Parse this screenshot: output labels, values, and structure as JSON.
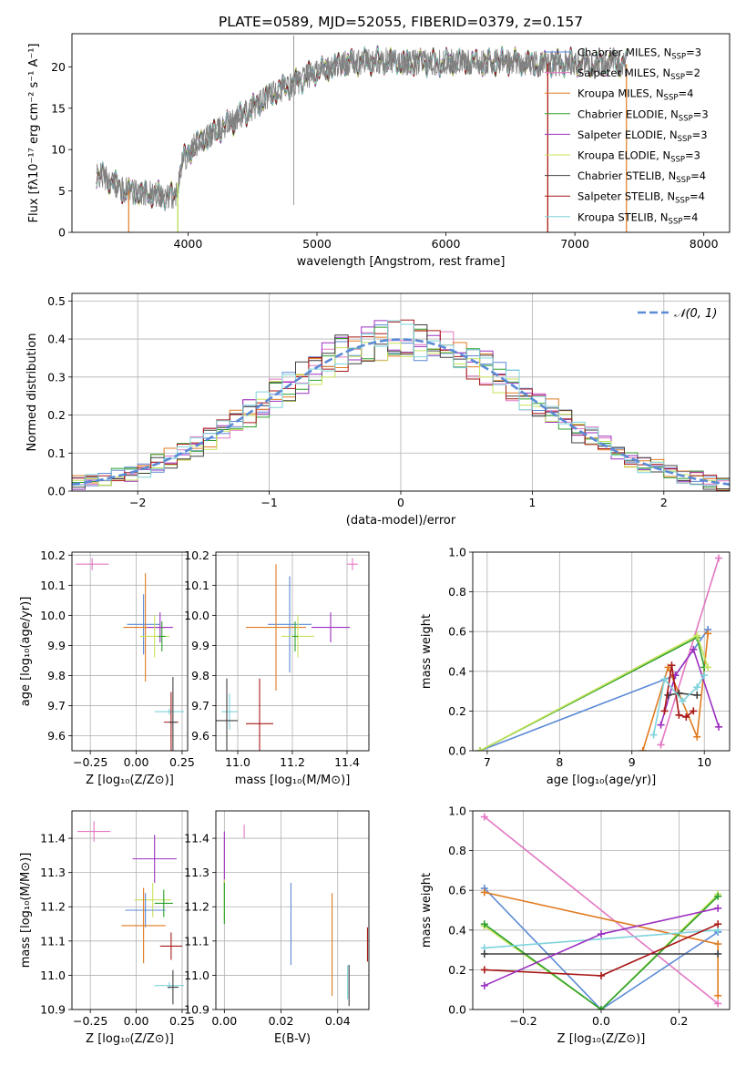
{
  "figure": {
    "title": "PLATE=0589, MJD=52055, FIBERID=0379, z=0.157"
  },
  "models": [
    {
      "key": "cm",
      "color": "#5b8ad6",
      "name": "Chabrier MILES, N",
      "sub": "SSP",
      "suffix": "=3"
    },
    {
      "key": "sm",
      "color": "#e377c2",
      "name": "Salpeter MILES, N",
      "sub": "SSP",
      "suffix": "=2"
    },
    {
      "key": "km",
      "color": "#e07b20",
      "name": "Kroupa MILES, N",
      "sub": "SSP",
      "suffix": "=4"
    },
    {
      "key": "ce",
      "color": "#2ca02c",
      "name": "Chabrier ELODIE, N",
      "sub": "SSP",
      "suffix": "=3"
    },
    {
      "key": "se",
      "color": "#9b30c0",
      "name": "Salpeter ELODIE, N",
      "sub": "SSP",
      "suffix": "=3"
    },
    {
      "key": "ke",
      "color": "#c7e35a",
      "name": "Kroupa ELODIE, N",
      "sub": "SSP",
      "suffix": "=3"
    },
    {
      "key": "cs",
      "color": "#404040",
      "name": "Chabrier STELIB, N",
      "sub": "SSP",
      "suffix": "=4"
    },
    {
      "key": "ss",
      "color": "#a81818",
      "name": "Salpeter STELIB, N",
      "sub": "SSP",
      "suffix": "=4"
    },
    {
      "key": "ks",
      "color": "#7fd3dc",
      "name": "Kroupa STELIB, N",
      "sub": "SSP",
      "suffix": "=4"
    }
  ],
  "chart_data": [
    {
      "type": "line",
      "id": "spectrum",
      "title": "PLATE=0589, MJD=52055, FIBERID=0379, z=0.157",
      "xlabel": "wavelength [Angstrom, rest frame]",
      "ylabel": "Flux [fλ10⁻¹⁷ erg cm⁻² s⁻¹ A⁻¹]",
      "xlim": [
        3100,
        8200
      ],
      "ylim": [
        0,
        24
      ],
      "xticks": [
        4000,
        5000,
        6000,
        7000,
        8000
      ],
      "yticks": [
        0,
        5,
        10,
        15,
        20
      ],
      "data_color": "#808080",
      "data_line_width": 0.8,
      "continuum_knots": {
        "x": [
          3290,
          3400,
          3480,
          3600,
          3750,
          3900,
          3950,
          4050,
          4200,
          4350,
          4450,
          4550,
          4700,
          4800,
          4900,
          5000,
          5100,
          5200,
          5300,
          5500,
          5700,
          5900,
          6100,
          6300,
          6500,
          6700,
          6900,
          7000,
          7100,
          7200,
          7300,
          7400
        ],
        "y": [
          7.0,
          6.3,
          5.2,
          4.8,
          4.6,
          4.3,
          8.5,
          10.5,
          12.0,
          13.4,
          14.5,
          15.6,
          17.2,
          17.8,
          18.6,
          19.5,
          19.8,
          20.5,
          20.5,
          20.8,
          20.5,
          20.5,
          20.6,
          20.5,
          20.7,
          20.3,
          20.5,
          20.6,
          20.4,
          20.2,
          20.6,
          20.3
        ]
      },
      "spikes": [
        {
          "x": 4820,
          "y_top": 23.8,
          "y_bottom": 3.3
        }
      ],
      "model_dropouts": [
        {
          "model": "km",
          "x": 3540
        },
        {
          "model": "ce",
          "x": 3920
        },
        {
          "model": "ke",
          "x": 3920
        },
        {
          "model": "km",
          "x": 6790
        },
        {
          "model": "ss",
          "x": 6790
        },
        {
          "model": "km",
          "x": 7400
        }
      ]
    },
    {
      "type": "line",
      "id": "residuals",
      "xlabel": "(data-model)/error",
      "ylabel": "Normed distribution",
      "xlim": [
        -2.5,
        2.5
      ],
      "ylim": [
        0,
        0.52
      ],
      "xticks": [
        -2,
        -1,
        0,
        1,
        2
      ],
      "yticks": [
        0.0,
        0.1,
        0.2,
        0.3,
        0.4,
        0.5
      ],
      "grid": true,
      "legend_position": "top-right",
      "normal_curve": {
        "label": "𝒩(0, 1)",
        "mean": 0,
        "sigma": 1,
        "color": "#5b8ad6"
      },
      "bin_width": 0.1,
      "noise_amplitude": 0.055
    },
    {
      "type": "scatter",
      "id": "age_vs_Z",
      "xlabel": "Z [log₁₀(Z/Z⊙)]",
      "ylabel": "age  [log₁₀(age/yr)]",
      "xlim": [
        -0.35,
        0.28
      ],
      "ylim": [
        9.55,
        10.21
      ],
      "xticks": [
        -0.25,
        0.0,
        0.25
      ],
      "yticks": [
        9.6,
        9.7,
        9.8,
        9.9,
        10.0,
        10.1,
        10.2
      ],
      "grid": true,
      "points": [
        {
          "model": "sm",
          "x": -0.24,
          "xerr": 0.09,
          "y": 10.17,
          "yerr": 0.02
        },
        {
          "model": "cm",
          "x": 0.04,
          "xerr": 0.09,
          "y": 9.97,
          "yerr": 0.1
        },
        {
          "model": "km",
          "x": 0.05,
          "xerr": 0.12,
          "y": 9.96,
          "yerr": 0.18
        },
        {
          "model": "se",
          "x": 0.13,
          "xerr": 0.07,
          "y": 9.96,
          "yerr": 0.05
        },
        {
          "model": "ke",
          "x": 0.1,
          "xerr": 0.08,
          "y": 9.93,
          "yerr": 0.07
        },
        {
          "model": "ce",
          "x": 0.14,
          "xerr": 0.02,
          "y": 9.93,
          "yerr": 0.05
        },
        {
          "model": "ks",
          "x": 0.18,
          "xerr": 0.08,
          "y": 9.68,
          "yerr": 0.01
        },
        {
          "model": "ss",
          "x": 0.19,
          "xerr": 0.04,
          "y": 9.645,
          "yerr": 0.1
        },
        {
          "model": "cs",
          "x": 0.2,
          "xerr": 0.02,
          "y": 9.645,
          "yerr": 0.15
        }
      ]
    },
    {
      "type": "scatter",
      "id": "age_vs_mass",
      "xlabel": "mass [log₁₀(M/M⊙)]",
      "ylabel": "",
      "xlim": [
        10.92,
        11.48
      ],
      "ylim": [
        9.55,
        10.21
      ],
      "xticks": [
        11.0,
        11.2,
        11.4
      ],
      "yticks": [
        9.6,
        9.7,
        9.8,
        9.9,
        10.0,
        10.1,
        10.2
      ],
      "grid": true,
      "points": [
        {
          "model": "sm",
          "x": 11.42,
          "xerr": 0.02,
          "y": 10.17,
          "yerr": 0.02
        },
        {
          "model": "cm",
          "x": 11.19,
          "xerr": 0.08,
          "y": 9.97,
          "yerr": 0.16
        },
        {
          "model": "km",
          "x": 11.14,
          "xerr": 0.11,
          "y": 9.96,
          "yerr": 0.21
        },
        {
          "model": "se",
          "x": 11.34,
          "xerr": 0.07,
          "y": 9.96,
          "yerr": 0.05
        },
        {
          "model": "ke",
          "x": 11.22,
          "xerr": 0.06,
          "y": 9.93,
          "yerr": 0.07
        },
        {
          "model": "ce",
          "x": 11.21,
          "xerr": 0.01,
          "y": 9.93,
          "yerr": 0.05
        },
        {
          "model": "ks",
          "x": 10.97,
          "xerr": 0.03,
          "y": 9.68,
          "yerr": 0.06
        },
        {
          "model": "cs",
          "x": 10.96,
          "xerr": 0.04,
          "y": 9.65,
          "yerr": 0.14
        },
        {
          "model": "ss",
          "x": 11.08,
          "xerr": 0.05,
          "y": 9.64,
          "yerr": 0.15
        }
      ]
    },
    {
      "type": "line",
      "id": "weight_vs_age",
      "xlabel": "age  [log₁₀(age/yr)]",
      "ylabel": "mass weight",
      "xlim": [
        6.8,
        10.35
      ],
      "ylim": [
        0,
        1
      ],
      "xticks": [
        7,
        8,
        9,
        10
      ],
      "yticks": [
        0.0,
        0.2,
        0.4,
        0.6,
        0.8,
        1.0
      ],
      "grid": true,
      "series": [
        {
          "model": "cm",
          "x": [
            6.9,
            9.6,
            10.05
          ],
          "y": [
            0.0,
            0.38,
            0.61
          ]
        },
        {
          "model": "sm",
          "x": [
            9.4,
            10.2
          ],
          "y": [
            0.03,
            0.97
          ]
        },
        {
          "model": "km",
          "x": [
            9.15,
            9.5,
            9.9,
            10.05
          ],
          "y": [
            0.0,
            0.42,
            0.07,
            0.59
          ]
        },
        {
          "model": "ce",
          "x": [
            6.9,
            9.9,
            10.0
          ],
          "y": [
            0.0,
            0.57,
            0.42
          ]
        },
        {
          "model": "se",
          "x": [
            9.4,
            9.6,
            9.85,
            10.2
          ],
          "y": [
            0.13,
            0.38,
            0.51,
            0.12
          ]
        },
        {
          "model": "ke",
          "x": [
            6.9,
            9.9,
            10.05
          ],
          "y": [
            0.0,
            0.58,
            0.42
          ]
        },
        {
          "model": "cs",
          "x": [
            9.5,
            9.65,
            9.9
          ],
          "y": [
            0.28,
            0.29,
            0.28
          ]
        },
        {
          "model": "ss",
          "x": [
            9.45,
            9.55,
            9.65,
            9.75,
            9.85
          ],
          "y": [
            0.2,
            0.43,
            0.18,
            0.17,
            0.2
          ]
        },
        {
          "model": "ks",
          "x": [
            9.3,
            9.45,
            9.7,
            9.9,
            10.0
          ],
          "y": [
            0.08,
            0.36,
            0.25,
            0.32,
            0.38
          ]
        }
      ]
    },
    {
      "type": "scatter",
      "id": "mass_vs_Z",
      "xlabel": "Z [log₁₀(Z/Z⊙)]",
      "ylabel": "mass [log₁₀(M/M⊙)]",
      "xlim": [
        -0.35,
        0.28
      ],
      "ylim": [
        10.9,
        11.48
      ],
      "xticks": [
        -0.25,
        0.0,
        0.25
      ],
      "yticks": [
        10.9,
        11.0,
        11.1,
        11.2,
        11.3,
        11.4
      ],
      "grid": true,
      "points": [
        {
          "model": "sm",
          "x": -0.23,
          "xerr": 0.09,
          "y": 11.42,
          "yerr": 0.03
        },
        {
          "model": "se",
          "x": 0.1,
          "xerr": 0.12,
          "y": 11.34,
          "yerr": 0.07
        },
        {
          "model": "ke",
          "x": 0.09,
          "xerr": 0.1,
          "y": 11.22,
          "yerr": 0.05
        },
        {
          "model": "ce",
          "x": 0.15,
          "xerr": 0.05,
          "y": 11.21,
          "yerr": 0.04
        },
        {
          "model": "cm",
          "x": 0.05,
          "xerr": 0.11,
          "y": 11.19,
          "yerr": 0.05
        },
        {
          "model": "km",
          "x": 0.04,
          "xerr": 0.12,
          "y": 11.145,
          "yerr": 0.11
        },
        {
          "model": "ss",
          "x": 0.19,
          "xerr": 0.06,
          "y": 11.085,
          "yerr": 0.04
        },
        {
          "model": "ks",
          "x": 0.18,
          "xerr": 0.08,
          "y": 10.97,
          "yerr": 0.01
        },
        {
          "model": "cs",
          "x": 0.2,
          "xerr": 0.03,
          "y": 10.965,
          "yerr": 0.05
        }
      ]
    },
    {
      "type": "scatter",
      "id": "mass_vs_ebv",
      "xlabel": "E(B-V)",
      "ylabel": "",
      "xlim": [
        -0.003,
        0.051
      ],
      "ylim": [
        10.9,
        11.48
      ],
      "xticks": [
        0.0,
        0.02,
        0.04
      ],
      "yticks": [
        10.9,
        11.0,
        11.1,
        11.2,
        11.3,
        11.4
      ],
      "grid": true,
      "points": [
        {
          "model": "sm",
          "x": 0.007,
          "xerr": 0.0,
          "y": 11.42,
          "yerr": 0.02
        },
        {
          "model": "se",
          "x": 0.0,
          "xerr": 0.0,
          "y": 11.34,
          "yerr": 0.08
        },
        {
          "model": "ke",
          "x": 0.0,
          "xerr": 0.0,
          "y": 11.22,
          "yerr": 0.06
        },
        {
          "model": "ce",
          "x": 0.0,
          "xerr": 0.0,
          "y": 11.21,
          "yerr": 0.06
        },
        {
          "model": "cm",
          "x": 0.0235,
          "xerr": 0.0,
          "y": 11.15,
          "yerr": 0.12
        },
        {
          "model": "km",
          "x": 0.038,
          "xerr": 0.0,
          "y": 11.09,
          "yerr": 0.15
        },
        {
          "model": "ss",
          "x": 0.0505,
          "xerr": 0.0,
          "y": 11.09,
          "yerr": 0.05
        },
        {
          "model": "ks",
          "x": 0.0435,
          "xerr": 0.0,
          "y": 10.98,
          "yerr": 0.05
        },
        {
          "model": "cs",
          "x": 0.044,
          "xerr": 0.0,
          "y": 10.97,
          "yerr": 0.06
        }
      ]
    },
    {
      "type": "line",
      "id": "weight_vs_Z",
      "xlabel": "Z [log₁₀(Z/Z⊙)]",
      "ylabel": "mass weight",
      "xlim": [
        -0.33,
        0.33
      ],
      "ylim": [
        0,
        1
      ],
      "xticks": [
        -0.2,
        0.0,
        0.2
      ],
      "yticks": [
        0.0,
        0.2,
        0.4,
        0.6,
        0.8,
        1.0
      ],
      "grid": true,
      "series": [
        {
          "model": "sm",
          "x": [
            -0.3,
            0.3
          ],
          "y": [
            0.97,
            0.03
          ]
        },
        {
          "model": "cm",
          "x": [
            -0.3,
            0.0,
            0.3
          ],
          "y": [
            0.61,
            0.0,
            0.39
          ]
        },
        {
          "model": "km",
          "x": [
            -0.3,
            0.3,
            0.3
          ],
          "y": [
            0.59,
            0.33,
            0.07
          ]
        },
        {
          "model": "ke",
          "x": [
            -0.3,
            0.0,
            0.3
          ],
          "y": [
            0.42,
            0.0,
            0.58
          ]
        },
        {
          "model": "ce",
          "x": [
            -0.3,
            0.0,
            0.3
          ],
          "y": [
            0.43,
            0.0,
            0.57
          ]
        },
        {
          "model": "ks",
          "x": [
            -0.3,
            0.3
          ],
          "y": [
            0.31,
            0.4
          ]
        },
        {
          "model": "cs",
          "x": [
            -0.3,
            0.3
          ],
          "y": [
            0.28,
            0.28
          ]
        },
        {
          "model": "ss",
          "x": [
            -0.3,
            0.0,
            0.3
          ],
          "y": [
            0.2,
            0.17,
            0.43
          ]
        },
        {
          "model": "se",
          "x": [
            -0.3,
            0.0,
            0.3
          ],
          "y": [
            0.12,
            0.38,
            0.51
          ]
        }
      ]
    }
  ]
}
